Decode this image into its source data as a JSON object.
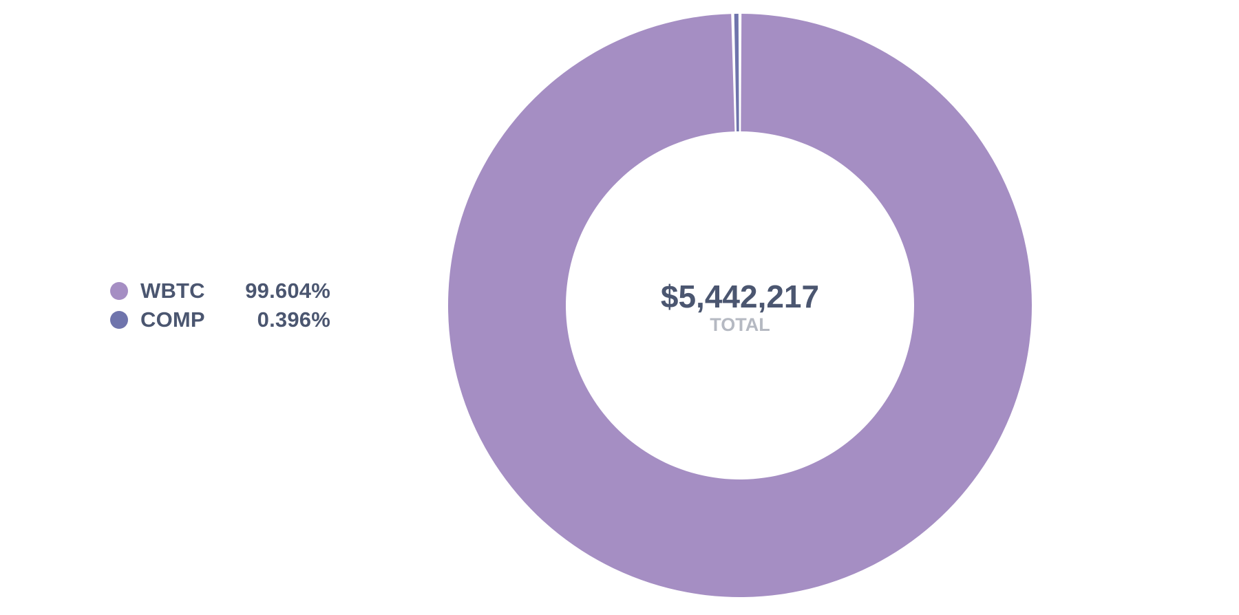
{
  "chart_data": {
    "type": "pie",
    "subtype": "donut",
    "categories": [
      "WBTC",
      "COMP"
    ],
    "values": [
      99.604,
      0.396
    ],
    "value_labels": [
      "99.604%",
      "0.396%"
    ],
    "colors": [
      "#a58ec3",
      "#6f74ac"
    ],
    "center_value": "$5,442,217",
    "center_label": "TOTAL",
    "legend_position": "left"
  },
  "legend": {
    "items": [
      {
        "label": "WBTC",
        "value": "99.604%",
        "color": "#a58ec3"
      },
      {
        "label": "COMP",
        "value": "0.396%",
        "color": "#6f74ac"
      }
    ]
  }
}
